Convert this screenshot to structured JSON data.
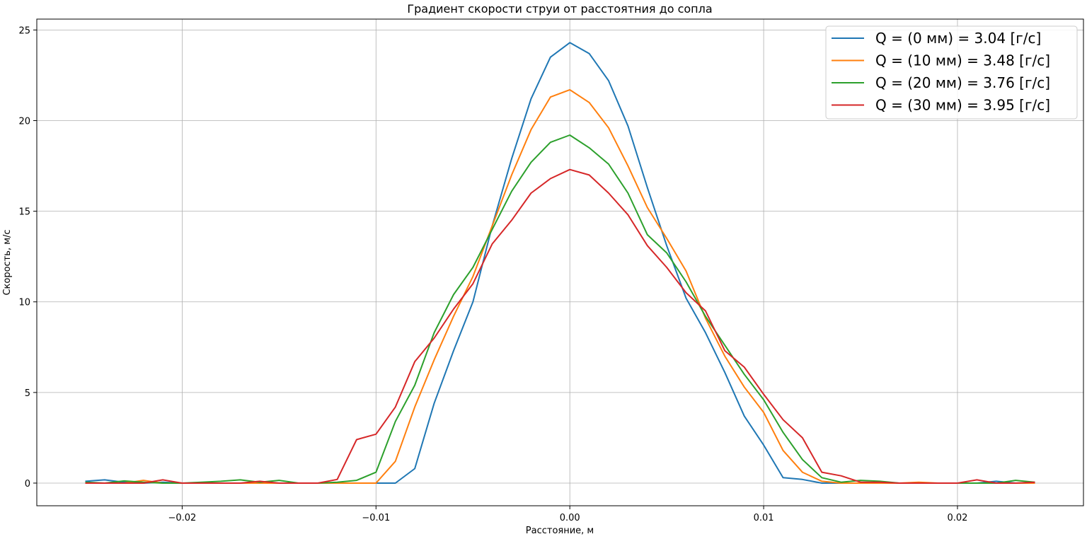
{
  "chart_data": {
    "type": "line",
    "title": "Градиент скорости струи от расстоятния до сопла",
    "xlabel": "Расстояние, м",
    "ylabel": "Скорость, м/с",
    "xlim": [
      -0.0275,
      0.0265
    ],
    "ylim": [
      -1.25,
      25.6
    ],
    "xticks": [
      -0.02,
      -0.01,
      0.0,
      0.01,
      0.02
    ],
    "xtick_labels": [
      "−0.02",
      "−0.01",
      "0.00",
      "0.01",
      "0.02"
    ],
    "yticks": [
      0,
      5,
      10,
      15,
      20,
      25
    ],
    "ytick_labels": [
      "0",
      "5",
      "10",
      "15",
      "20",
      "25"
    ],
    "grid": true,
    "legend_position": "top-right",
    "x": [
      -0.025,
      -0.024,
      -0.023,
      -0.022,
      -0.021,
      -0.02,
      -0.019,
      -0.018,
      -0.017,
      -0.016,
      -0.015,
      -0.014,
      -0.013,
      -0.012,
      -0.011,
      -0.01,
      -0.009,
      -0.008,
      -0.007,
      -0.006,
      -0.005,
      -0.004,
      -0.003,
      -0.002,
      -0.001,
      0.0,
      0.001,
      0.002,
      0.003,
      0.004,
      0.005,
      0.006,
      0.007,
      0.008,
      0.009,
      0.01,
      0.011,
      0.012,
      0.013,
      0.014,
      0.015,
      0.016,
      0.017,
      0.018,
      0.019,
      0.02,
      0.021,
      0.022,
      0.023,
      0.024
    ],
    "series": [
      {
        "name": "Q = (0 мм) = 3.04 [г/с]",
        "color": "#1f77b4",
        "values": [
          0.1,
          0.18,
          0.05,
          0.0,
          0.05,
          0.0,
          0.0,
          0.0,
          0.0,
          0.0,
          0.0,
          0.0,
          0.0,
          0.0,
          0.0,
          0.0,
          0.0,
          0.8,
          4.4,
          7.3,
          10.0,
          14.2,
          17.9,
          21.2,
          23.5,
          24.3,
          23.7,
          22.2,
          19.7,
          16.3,
          13.1,
          10.2,
          8.3,
          6.1,
          3.7,
          2.1,
          0.3,
          0.2,
          0.0,
          0.0,
          0.0,
          0.0,
          0.0,
          0.0,
          0.0,
          0.0,
          0.0,
          0.1,
          0.0,
          0.0
        ]
      },
      {
        "name": "Q = (10 мм) = 3.48 [г/с]",
        "color": "#ff7f0e",
        "values": [
          0.0,
          0.0,
          0.0,
          0.15,
          0.0,
          0.0,
          0.0,
          0.0,
          0.0,
          0.0,
          0.0,
          0.0,
          0.0,
          0.0,
          0.0,
          0.0,
          1.2,
          4.2,
          6.8,
          9.2,
          11.4,
          14.2,
          17.0,
          19.5,
          21.3,
          21.7,
          21.0,
          19.6,
          17.5,
          15.2,
          13.5,
          11.7,
          9.1,
          7.0,
          5.3,
          3.9,
          1.8,
          0.6,
          0.1,
          0.0,
          0.0,
          0.0,
          0.0,
          0.05,
          0.0,
          0.0,
          0.0,
          0.0,
          0.0,
          0.0
        ]
      },
      {
        "name": "Q = (20 мм) = 3.76 [г/с]",
        "color": "#2ca02c",
        "values": [
          0.05,
          0.0,
          0.12,
          0.05,
          0.0,
          0.0,
          0.05,
          0.1,
          0.18,
          0.05,
          0.15,
          0.0,
          0.0,
          0.05,
          0.15,
          0.6,
          3.4,
          5.4,
          8.3,
          10.4,
          11.9,
          14.0,
          16.1,
          17.7,
          18.8,
          19.2,
          18.5,
          17.6,
          16.0,
          13.7,
          12.7,
          11.1,
          9.2,
          7.6,
          6.0,
          4.6,
          2.8,
          1.3,
          0.3,
          0.05,
          0.15,
          0.1,
          0.0,
          0.0,
          0.0,
          0.0,
          0.0,
          0.0,
          0.15,
          0.05
        ]
      },
      {
        "name": "Q = (30 мм) = 3.95 [г/с]",
        "color": "#d62728",
        "values": [
          0.0,
          0.0,
          0.0,
          0.0,
          0.18,
          0.0,
          0.0,
          0.0,
          0.0,
          0.1,
          0.0,
          0.0,
          0.0,
          0.2,
          2.4,
          2.7,
          4.2,
          6.7,
          8.0,
          9.6,
          11.0,
          13.2,
          14.5,
          16.0,
          16.8,
          17.3,
          17.0,
          16.0,
          14.8,
          13.1,
          11.9,
          10.5,
          9.5,
          7.3,
          6.4,
          4.9,
          3.5,
          2.5,
          0.6,
          0.4,
          0.05,
          0.05,
          0.0,
          0.0,
          0.0,
          0.0,
          0.18,
          0.0,
          0.0,
          0.05
        ]
      }
    ]
  }
}
